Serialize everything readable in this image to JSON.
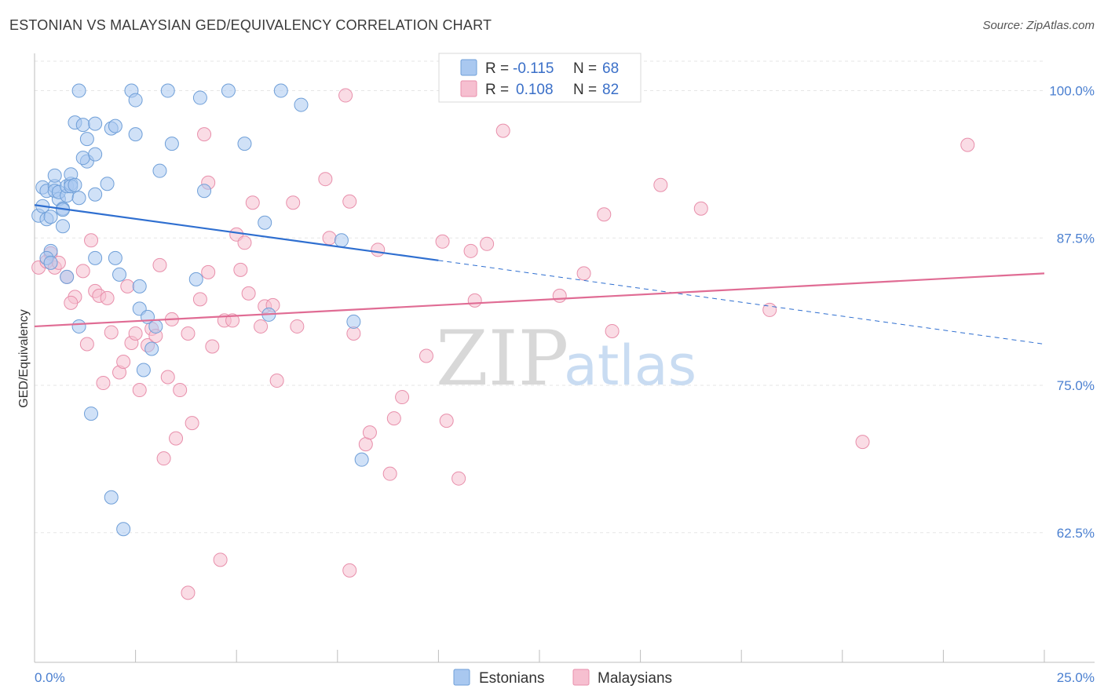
{
  "title": "ESTONIAN VS MALAYSIAN GED/EQUIVALENCY CORRELATION CHART",
  "source": "Source: ZipAtlas.com",
  "watermark": {
    "zip": "ZIP",
    "atlas": "atlas"
  },
  "colors": {
    "blue_fill": "#a9c8f0",
    "blue_stroke": "#6f9fd8",
    "blue_line": "#2f6fd0",
    "pink_fill": "#f6bfd0",
    "pink_stroke": "#e88fab",
    "pink_line": "#e06c94",
    "grid": "#e6e6e6",
    "axis_text": "#4a7fd0"
  },
  "legend": {
    "rows": [
      {
        "r_label": "R =",
        "r_value": "-0.115",
        "n_label": "N =",
        "n_value": "68"
      },
      {
        "r_label": "R =",
        "r_value": "0.108",
        "n_label": "N =",
        "n_value": "82"
      }
    ]
  },
  "bottom_legend": [
    "Estonians",
    "Malaysians"
  ],
  "chart_data": {
    "type": "scatter",
    "title": "ESTONIAN VS MALAYSIAN GED/EQUIVALENCY CORRELATION CHART",
    "xlabel": "",
    "ylabel": "GED/Equivalency",
    "xlim": [
      0,
      25
    ],
    "ylim": [
      51.5,
      102.5
    ],
    "x_tick_labels": [
      "0.0%",
      "25.0%"
    ],
    "y_ticks": [
      62.5,
      75.0,
      87.5,
      100.0
    ],
    "y_tick_labels": [
      "62.5%",
      "75.0%",
      "87.5%",
      "100.0%"
    ],
    "series": [
      {
        "name": "Estonians",
        "r": -0.115,
        "n": 68,
        "trend": {
          "x0": 0,
          "y0": 90.3,
          "x1": 10,
          "y1": 85.6,
          "x_dash_end": 25,
          "y_dash_end": 78.5
        },
        "points": [
          [
            0.1,
            89.4
          ],
          [
            0.2,
            90.2
          ],
          [
            0.2,
            91.8
          ],
          [
            0.3,
            89.1
          ],
          [
            0.3,
            91.5
          ],
          [
            0.4,
            89.3
          ],
          [
            0.5,
            91.9
          ],
          [
            0.5,
            91.5
          ],
          [
            0.5,
            92.8
          ],
          [
            0.6,
            90.8
          ],
          [
            0.6,
            91.4
          ],
          [
            0.7,
            90.0
          ],
          [
            0.7,
            88.5
          ],
          [
            0.7,
            89.9
          ],
          [
            0.8,
            91.1
          ],
          [
            0.8,
            91.9
          ],
          [
            0.9,
            92.1
          ],
          [
            0.9,
            92.9
          ],
          [
            0.9,
            91.9
          ],
          [
            1.0,
            92.0
          ],
          [
            1.1,
            90.9
          ],
          [
            0.4,
            86.4
          ],
          [
            0.3,
            85.8
          ],
          [
            0.4,
            85.4
          ],
          [
            1.0,
            97.3
          ],
          [
            1.2,
            97.1
          ],
          [
            1.3,
            95.9
          ],
          [
            1.3,
            94.0
          ],
          [
            1.2,
            94.3
          ],
          [
            1.5,
            94.6
          ],
          [
            1.5,
            97.2
          ],
          [
            1.5,
            91.2
          ],
          [
            1.5,
            85.8
          ],
          [
            0.8,
            84.2
          ],
          [
            1.1,
            80.0
          ],
          [
            1.4,
            72.6
          ],
          [
            1.8,
            92.1
          ],
          [
            1.9,
            96.8
          ],
          [
            2.0,
            97.0
          ],
          [
            2.5,
            96.3
          ],
          [
            2.1,
            84.4
          ],
          [
            2.0,
            85.8
          ],
          [
            2.6,
            83.4
          ],
          [
            2.6,
            81.5
          ],
          [
            2.8,
            80.8
          ],
          [
            2.7,
            76.3
          ],
          [
            2.9,
            78.1
          ],
          [
            3.0,
            80.0
          ],
          [
            3.1,
            93.2
          ],
          [
            3.4,
            95.5
          ],
          [
            4.0,
            84.0
          ],
          [
            4.2,
            91.5
          ],
          [
            1.1,
            100.0
          ],
          [
            2.4,
            100.0
          ],
          [
            2.5,
            99.2
          ],
          [
            3.3,
            100.0
          ],
          [
            4.1,
            99.4
          ],
          [
            4.8,
            100.0
          ],
          [
            6.1,
            100.0
          ],
          [
            6.6,
            98.8
          ],
          [
            5.2,
            95.5
          ],
          [
            5.7,
            88.8
          ],
          [
            5.8,
            81.0
          ],
          [
            7.6,
            87.3
          ],
          [
            7.9,
            80.4
          ],
          [
            8.1,
            68.7
          ],
          [
            1.9,
            65.5
          ],
          [
            2.2,
            62.8
          ]
        ]
      },
      {
        "name": "Malaysians",
        "r": 0.108,
        "n": 82,
        "trend": {
          "x0": 0,
          "y0": 80.0,
          "x1": 25,
          "y1": 84.5
        },
        "points": [
          [
            0.1,
            85.0
          ],
          [
            0.3,
            85.5
          ],
          [
            0.4,
            86.2
          ],
          [
            0.5,
            85.0
          ],
          [
            0.6,
            85.4
          ],
          [
            0.8,
            84.2
          ],
          [
            1.0,
            82.5
          ],
          [
            0.9,
            82.0
          ],
          [
            1.2,
            84.7
          ],
          [
            1.3,
            78.5
          ],
          [
            1.4,
            87.3
          ],
          [
            1.5,
            83.0
          ],
          [
            1.6,
            82.6
          ],
          [
            1.7,
            75.2
          ],
          [
            1.8,
            82.4
          ],
          [
            1.9,
            79.5
          ],
          [
            2.1,
            76.1
          ],
          [
            2.2,
            77.0
          ],
          [
            2.3,
            83.4
          ],
          [
            2.4,
            78.6
          ],
          [
            2.5,
            79.4
          ],
          [
            2.6,
            74.6
          ],
          [
            2.8,
            78.4
          ],
          [
            2.9,
            79.8
          ],
          [
            3.0,
            79.2
          ],
          [
            3.1,
            85.2
          ],
          [
            3.2,
            68.8
          ],
          [
            3.3,
            75.7
          ],
          [
            3.4,
            80.6
          ],
          [
            3.5,
            70.5
          ],
          [
            3.6,
            74.6
          ],
          [
            3.8,
            79.4
          ],
          [
            3.9,
            71.8
          ],
          [
            4.1,
            82.3
          ],
          [
            4.2,
            96.3
          ],
          [
            4.3,
            92.2
          ],
          [
            4.4,
            78.3
          ],
          [
            4.6,
            60.2
          ],
          [
            4.7,
            80.5
          ],
          [
            4.9,
            80.5
          ],
          [
            5.0,
            87.8
          ],
          [
            5.1,
            84.8
          ],
          [
            5.2,
            87.1
          ],
          [
            5.3,
            82.8
          ],
          [
            5.4,
            90.5
          ],
          [
            5.6,
            80.0
          ],
          [
            5.7,
            81.7
          ],
          [
            5.9,
            81.8
          ],
          [
            6.0,
            75.4
          ],
          [
            6.4,
            90.5
          ],
          [
            6.5,
            80.0
          ],
          [
            7.2,
            92.5
          ],
          [
            7.3,
            87.5
          ],
          [
            7.8,
            90.6
          ],
          [
            7.7,
            99.6
          ],
          [
            7.8,
            59.3
          ],
          [
            7.9,
            79.4
          ],
          [
            8.2,
            70.0
          ],
          [
            8.3,
            71.0
          ],
          [
            8.5,
            86.5
          ],
          [
            8.8,
            67.5
          ],
          [
            8.9,
            72.2
          ],
          [
            9.1,
            74.0
          ],
          [
            9.7,
            77.5
          ],
          [
            10.1,
            87.2
          ],
          [
            10.2,
            72.0
          ],
          [
            10.5,
            67.1
          ],
          [
            10.8,
            86.4
          ],
          [
            10.9,
            82.2
          ],
          [
            11.2,
            87.0
          ],
          [
            11.6,
            96.6
          ],
          [
            13.0,
            82.6
          ],
          [
            13.6,
            84.5
          ],
          [
            14.1,
            89.5
          ],
          [
            14.3,
            79.6
          ],
          [
            15.5,
            92.0
          ],
          [
            16.5,
            90.0
          ],
          [
            18.2,
            81.4
          ],
          [
            20.5,
            70.2
          ],
          [
            23.1,
            95.4
          ],
          [
            3.8,
            57.4
          ],
          [
            4.3,
            84.6
          ]
        ]
      }
    ]
  }
}
